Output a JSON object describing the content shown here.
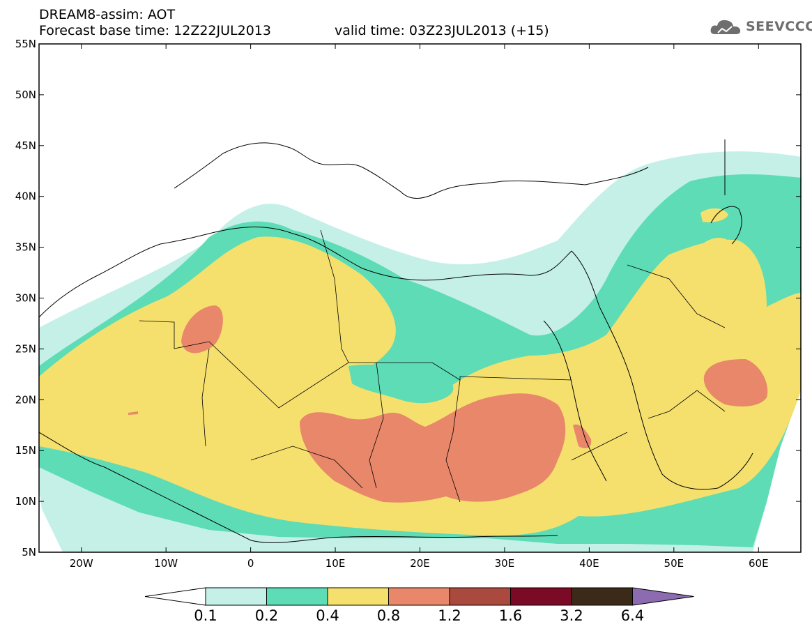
{
  "header": {
    "line1": "DREAM8-assim: AOT",
    "line2": "Forecast base time: 12Z22JUL2013",
    "valid": "valid time: 03Z23JUL2013 (+15)",
    "logo_text": "SEEVCCC"
  },
  "axes": {
    "lat_labels": [
      "55N",
      "50N",
      "45N",
      "40N",
      "35N",
      "30N",
      "25N",
      "20N",
      "15N",
      "10N",
      "5N"
    ],
    "lon_labels": [
      "20W",
      "10W",
      "0",
      "10E",
      "20E",
      "30E",
      "40E",
      "50E",
      "60E"
    ]
  },
  "colorbar": {
    "colors": [
      "#c4f0e8",
      "#5ddcb5",
      "#f5e06e",
      "#e9876a",
      "#aa4a3e",
      "#7a0a25",
      "#3b2a17"
    ],
    "under_color": "#ffffff",
    "over_color": "#8c6bb0",
    "labels": [
      "0.1",
      "0.2",
      "0.4",
      "0.8",
      "1.2",
      "1.6",
      "3.2",
      "6.4"
    ]
  },
  "map": {
    "lon_range": [
      -25,
      65
    ],
    "lat_range": [
      5,
      55
    ],
    "field": "AOT"
  }
}
